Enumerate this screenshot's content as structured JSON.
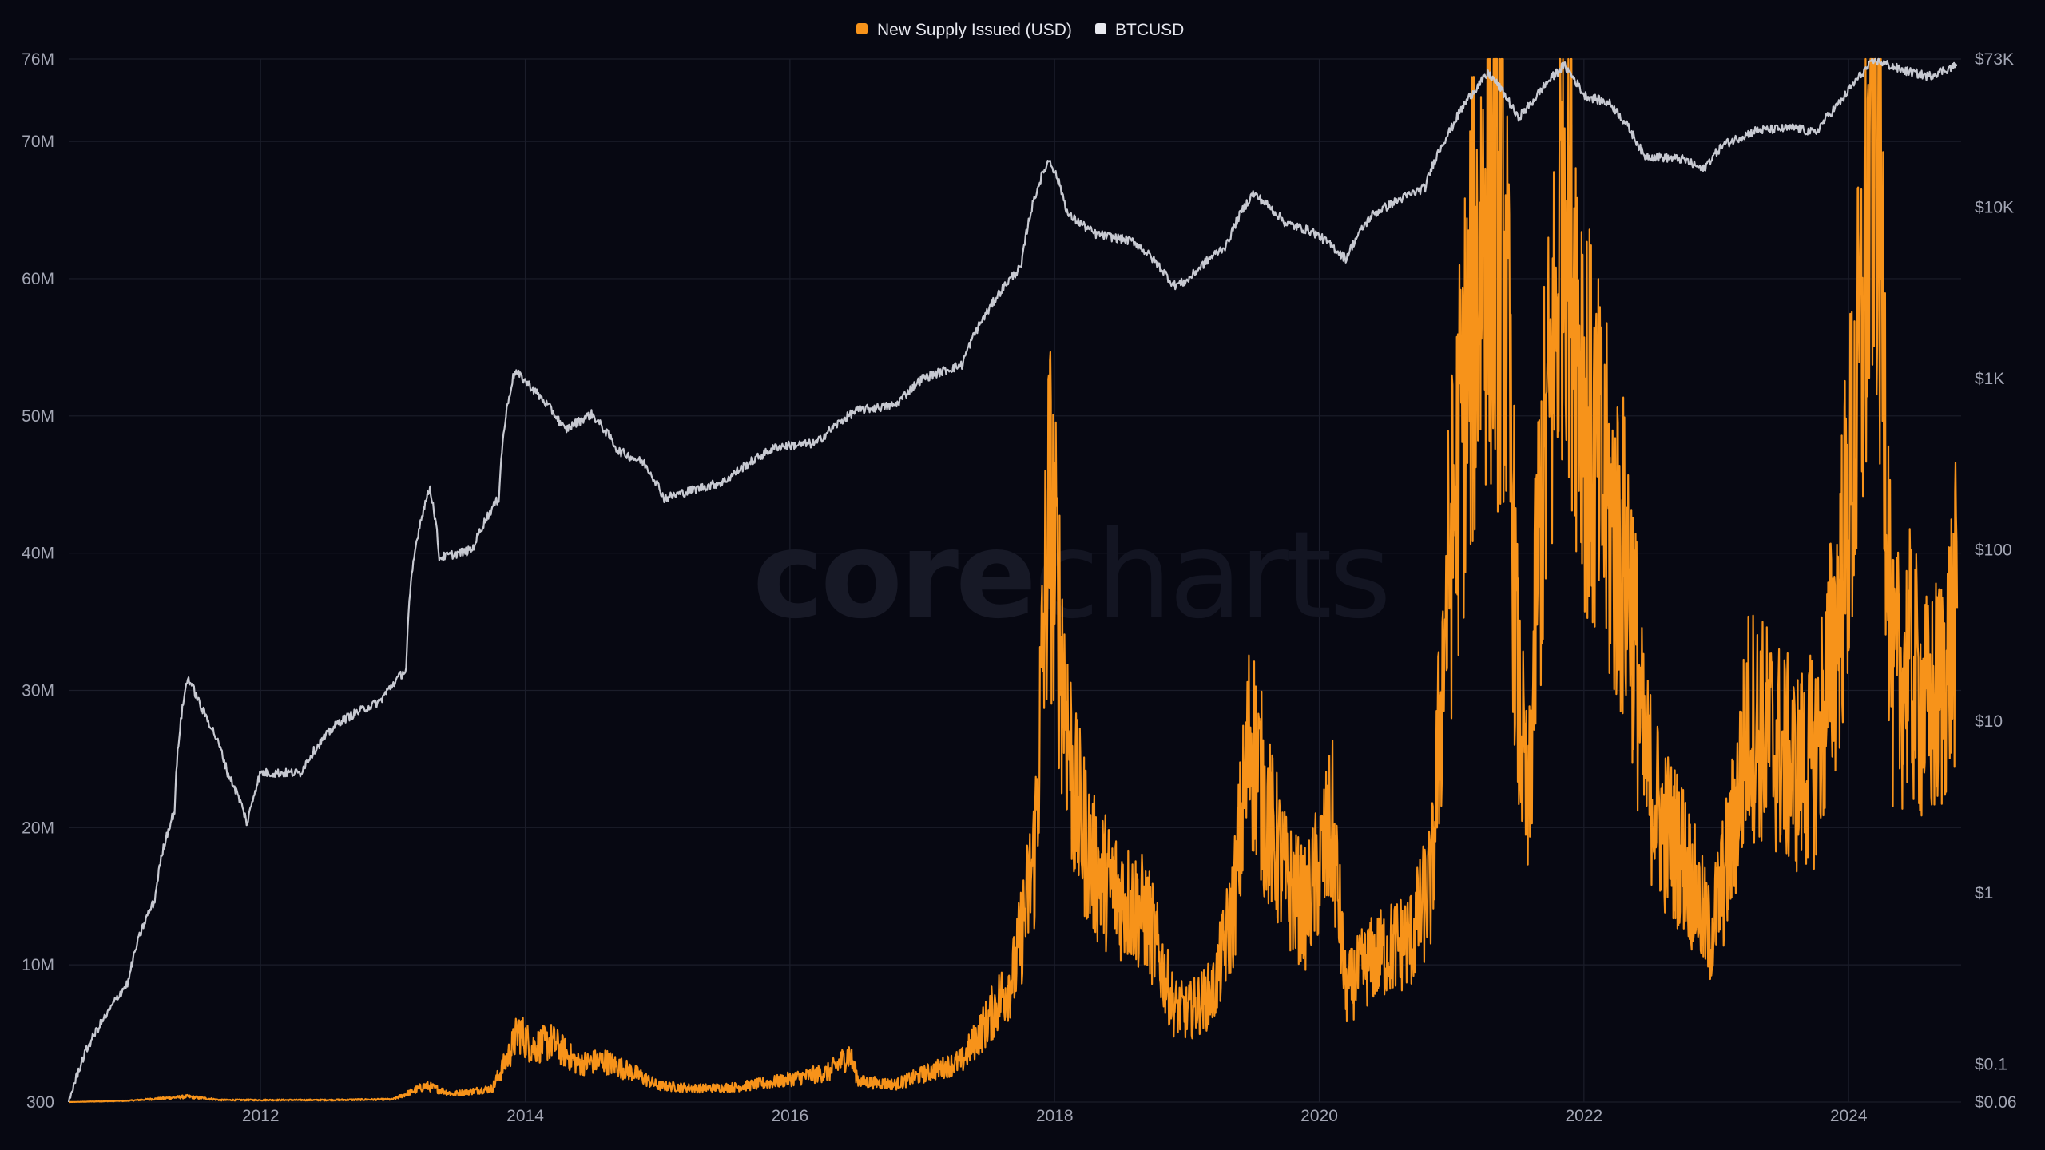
{
  "legend": {
    "supply_label": "New Supply Issued (USD)",
    "price_label": "BTCUSD"
  },
  "watermark": {
    "part1": "core",
    "part2": "charts"
  },
  "colors": {
    "background": "#070812",
    "supply": "#f7931a",
    "price": "#c7c9d1",
    "grid": "#1b1d2a",
    "tick_text": "#a2a5b3"
  },
  "chart_data": {
    "type": "line",
    "title": "",
    "xlabel": "",
    "x_range": [
      2010.55,
      2024.85
    ],
    "x_ticks": [
      {
        "value": 2012,
        "label": "2012"
      },
      {
        "value": 2014,
        "label": "2014"
      },
      {
        "value": 2016,
        "label": "2016"
      },
      {
        "value": 2018,
        "label": "2018"
      },
      {
        "value": 2020,
        "label": "2020"
      },
      {
        "value": 2022,
        "label": "2022"
      },
      {
        "value": 2024,
        "label": "2024"
      }
    ],
    "y_left": {
      "range": [
        300,
        76000000
      ],
      "ticks": [
        {
          "value": 300,
          "label": "300"
        },
        {
          "value": 10000000,
          "label": "10M"
        },
        {
          "value": 20000000,
          "label": "20M"
        },
        {
          "value": 30000000,
          "label": "30M"
        },
        {
          "value": 40000000,
          "label": "40M"
        },
        {
          "value": 50000000,
          "label": "50M"
        },
        {
          "value": 60000000,
          "label": "60M"
        },
        {
          "value": 70000000,
          "label": "70M"
        },
        {
          "value": 76000000,
          "label": "76M"
        }
      ]
    },
    "y_right": {
      "scale": "log",
      "range": [
        0.06,
        73000
      ],
      "ticks": [
        {
          "value": 0.06,
          "label": "$0.06"
        },
        {
          "value": 0.1,
          "label": "$0.1"
        },
        {
          "value": 1,
          "label": "$1"
        },
        {
          "value": 10,
          "label": "$10"
        },
        {
          "value": 100,
          "label": "$100"
        },
        {
          "value": 1000,
          "label": "$1K"
        },
        {
          "value": 10000,
          "label": "$10K"
        },
        {
          "value": 73000,
          "label": "$73K"
        }
      ]
    },
    "legend_position": "top-center",
    "grid": true,
    "series": [
      {
        "name": "New Supply Issued (USD)",
        "axis": "left",
        "points": [
          [
            2010.55,
            0
          ],
          [
            2011.0,
            100000
          ],
          [
            2011.45,
            400000
          ],
          [
            2011.7,
            150000
          ],
          [
            2012.5,
            150000
          ],
          [
            2013.0,
            200000
          ],
          [
            2013.25,
            1200000
          ],
          [
            2013.45,
            600000
          ],
          [
            2013.75,
            1000000
          ],
          [
            2013.88,
            3500000
          ],
          [
            2013.95,
            5200000
          ],
          [
            2014.05,
            4000000
          ],
          [
            2014.2,
            4400000
          ],
          [
            2014.4,
            2800000
          ],
          [
            2014.6,
            3000000
          ],
          [
            2014.85,
            2000000
          ],
          [
            2015.0,
            1200000
          ],
          [
            2015.3,
            1000000
          ],
          [
            2015.6,
            1100000
          ],
          [
            2015.9,
            1500000
          ],
          [
            2016.3,
            2200000
          ],
          [
            2016.45,
            3500000
          ],
          [
            2016.52,
            1500000
          ],
          [
            2016.8,
            1300000
          ],
          [
            2017.0,
            2000000
          ],
          [
            2017.3,
            3000000
          ],
          [
            2017.5,
            6000000
          ],
          [
            2017.7,
            9500000
          ],
          [
            2017.85,
            18000000
          ],
          [
            2017.96,
            44000000
          ],
          [
            2018.05,
            33000000
          ],
          [
            2018.15,
            22000000
          ],
          [
            2018.3,
            17000000
          ],
          [
            2018.5,
            15000000
          ],
          [
            2018.7,
            13500000
          ],
          [
            2018.9,
            7000000
          ],
          [
            2019.0,
            6500000
          ],
          [
            2019.2,
            8000000
          ],
          [
            2019.35,
            14000000
          ],
          [
            2019.48,
            27000000
          ],
          [
            2019.6,
            21000000
          ],
          [
            2019.75,
            16000000
          ],
          [
            2019.9,
            14000000
          ],
          [
            2020.1,
            20000000
          ],
          [
            2020.2,
            8000000
          ],
          [
            2020.35,
            10000000
          ],
          [
            2020.5,
            11000000
          ],
          [
            2020.7,
            12000000
          ],
          [
            2020.85,
            16000000
          ],
          [
            2020.95,
            35000000
          ],
          [
            2021.1,
            52000000
          ],
          [
            2021.25,
            65000000
          ],
          [
            2021.4,
            62000000
          ],
          [
            2021.5,
            30000000
          ],
          [
            2021.58,
            20000000
          ],
          [
            2021.65,
            40000000
          ],
          [
            2021.78,
            55000000
          ],
          [
            2021.85,
            72000000
          ],
          [
            2021.93,
            60000000
          ],
          [
            2022.05,
            48000000
          ],
          [
            2022.2,
            42000000
          ],
          [
            2022.35,
            38000000
          ],
          [
            2022.45,
            25000000
          ],
          [
            2022.6,
            20000000
          ],
          [
            2022.75,
            18000000
          ],
          [
            2022.85,
            15000000
          ],
          [
            2022.95,
            12000000
          ],
          [
            2023.1,
            18000000
          ],
          [
            2023.25,
            28000000
          ],
          [
            2023.45,
            26000000
          ],
          [
            2023.6,
            24000000
          ],
          [
            2023.75,
            25000000
          ],
          [
            2023.9,
            34000000
          ],
          [
            2024.0,
            43000000
          ],
          [
            2024.1,
            55000000
          ],
          [
            2024.2,
            76000000
          ],
          [
            2024.28,
            50000000
          ],
          [
            2024.33,
            30000000
          ],
          [
            2024.45,
            32000000
          ],
          [
            2024.6,
            28000000
          ],
          [
            2024.7,
            30000000
          ],
          [
            2024.82,
            36000000
          ]
        ]
      },
      {
        "name": "BTCUSD",
        "axis": "right",
        "points": [
          [
            2010.55,
            0.06
          ],
          [
            2010.6,
            0.08
          ],
          [
            2010.85,
            0.2
          ],
          [
            2011.0,
            0.3
          ],
          [
            2011.2,
            0.9
          ],
          [
            2011.35,
            3
          ],
          [
            2011.45,
            18
          ],
          [
            2011.55,
            12
          ],
          [
            2011.75,
            5
          ],
          [
            2011.9,
            2.5
          ],
          [
            2012.0,
            5
          ],
          [
            2012.3,
            5
          ],
          [
            2012.6,
            10
          ],
          [
            2012.9,
            13
          ],
          [
            2013.1,
            20
          ],
          [
            2013.28,
            230
          ],
          [
            2013.35,
            90
          ],
          [
            2013.6,
            100
          ],
          [
            2013.8,
            200
          ],
          [
            2013.92,
            1100
          ],
          [
            2014.1,
            800
          ],
          [
            2014.3,
            500
          ],
          [
            2014.5,
            620
          ],
          [
            2014.7,
            380
          ],
          [
            2014.9,
            320
          ],
          [
            2015.05,
            200
          ],
          [
            2015.5,
            250
          ],
          [
            2015.9,
            400
          ],
          [
            2016.2,
            420
          ],
          [
            2016.5,
            650
          ],
          [
            2016.8,
            700
          ],
          [
            2017.0,
            1000
          ],
          [
            2017.3,
            1200
          ],
          [
            2017.5,
            2500
          ],
          [
            2017.75,
            4500
          ],
          [
            2017.96,
            19000
          ],
          [
            2018.1,
            9000
          ],
          [
            2018.3,
            7000
          ],
          [
            2018.6,
            6300
          ],
          [
            2018.9,
            3500
          ],
          [
            2019.0,
            3700
          ],
          [
            2019.3,
            6000
          ],
          [
            2019.5,
            12000
          ],
          [
            2019.75,
            8000
          ],
          [
            2019.95,
            7200
          ],
          [
            2020.2,
            5000
          ],
          [
            2020.4,
            9000
          ],
          [
            2020.6,
            11000
          ],
          [
            2020.8,
            13000
          ],
          [
            2021.0,
            29000
          ],
          [
            2021.28,
            60000
          ],
          [
            2021.5,
            33000
          ],
          [
            2021.6,
            40000
          ],
          [
            2021.85,
            67000
          ],
          [
            2022.0,
            45000
          ],
          [
            2022.2,
            40000
          ],
          [
            2022.45,
            20000
          ],
          [
            2022.75,
            19000
          ],
          [
            2022.9,
            16500
          ],
          [
            2023.05,
            23000
          ],
          [
            2023.3,
            28000
          ],
          [
            2023.6,
            29000
          ],
          [
            2023.75,
            27000
          ],
          [
            2023.95,
            42000
          ],
          [
            2024.2,
            72000
          ],
          [
            2024.4,
            63000
          ],
          [
            2024.6,
            58000
          ],
          [
            2024.82,
            67000
          ]
        ]
      }
    ]
  }
}
